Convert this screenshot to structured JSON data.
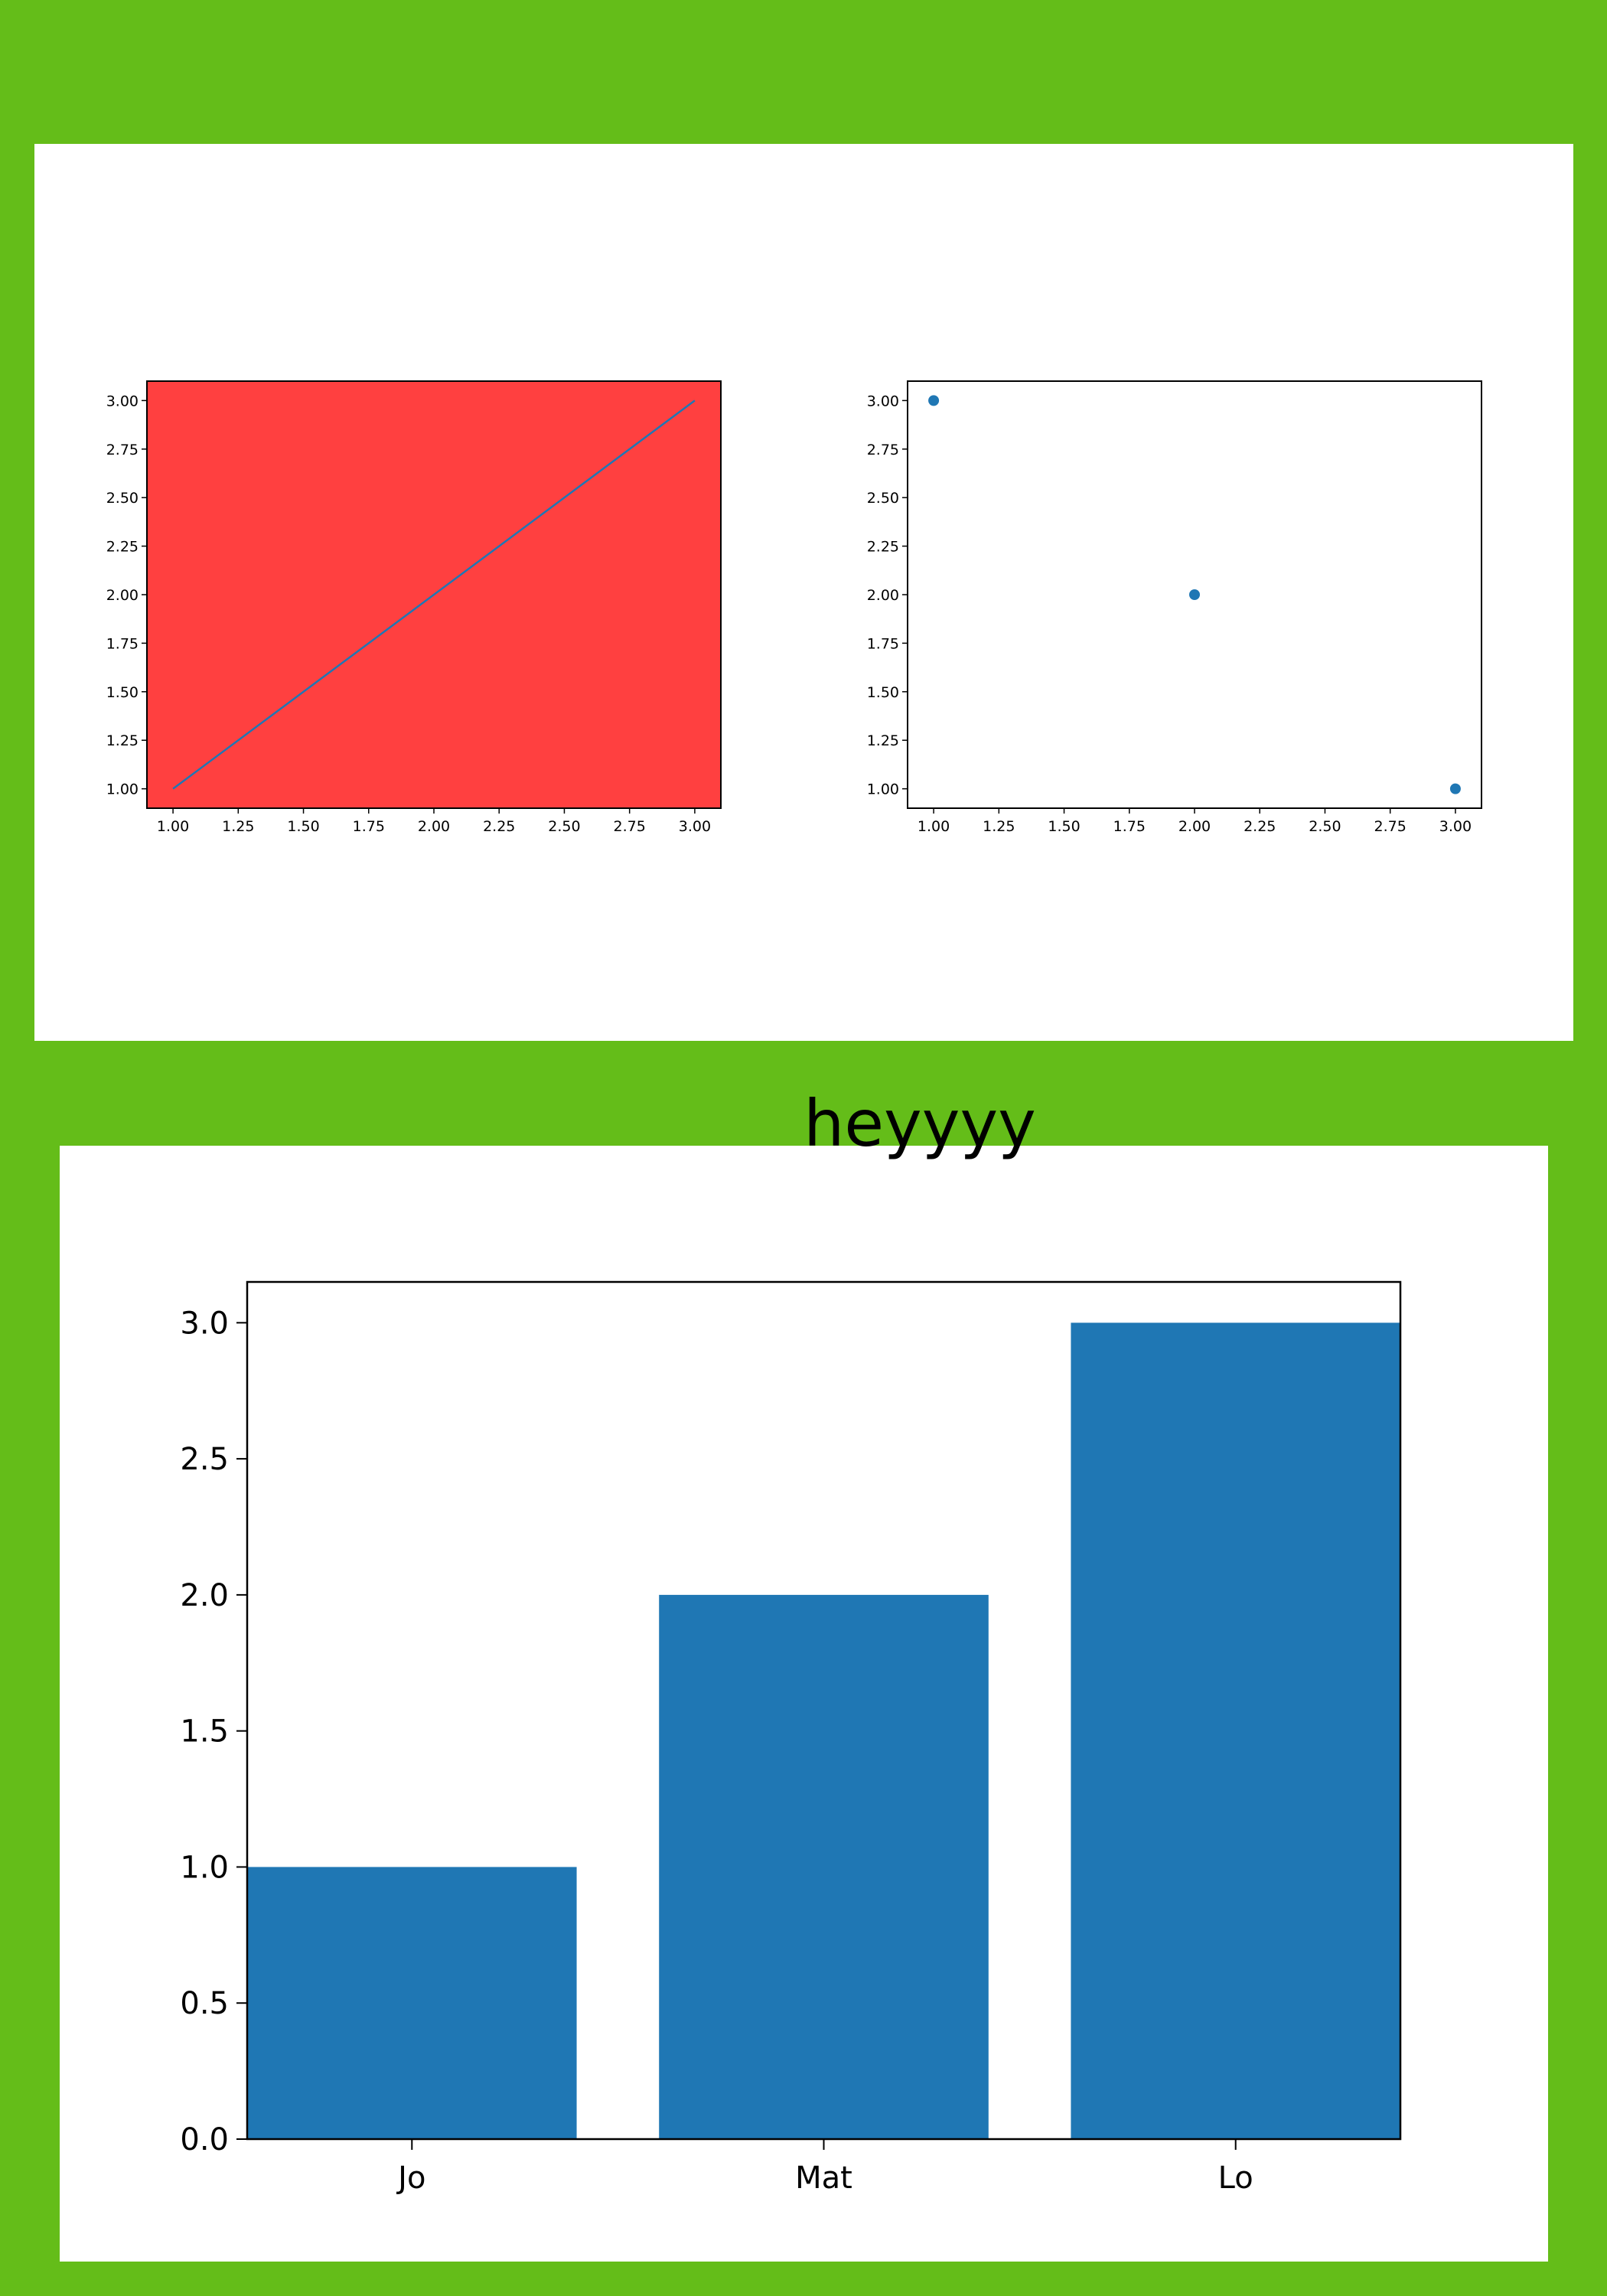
{
  "page": {
    "background_color": "#64bd19",
    "heading": "heyyyy"
  },
  "chart_data": [
    {
      "type": "line",
      "x": [
        1,
        2,
        3
      ],
      "series": [
        {
          "values": [
            1,
            2,
            3
          ],
          "color": "#1f77b4"
        }
      ],
      "xlim": [
        0.9,
        3.1
      ],
      "ylim": [
        0.9,
        3.1
      ],
      "xticks": [
        "1.00",
        "1.25",
        "1.50",
        "1.75",
        "2.00",
        "2.25",
        "2.50",
        "2.75",
        "3.00"
      ],
      "yticks": [
        "1.00",
        "1.25",
        "1.50",
        "1.75",
        "2.00",
        "2.25",
        "2.50",
        "2.75",
        "3.00"
      ],
      "facecolor": "#ff4040",
      "grid": false
    },
    {
      "type": "scatter",
      "x": [
        1,
        2,
        3
      ],
      "series": [
        {
          "values": [
            3,
            2,
            1
          ],
          "color": "#1f77b4"
        }
      ],
      "xlim": [
        0.9,
        3.1
      ],
      "ylim": [
        0.9,
        3.1
      ],
      "xticks": [
        "1.00",
        "1.25",
        "1.50",
        "1.75",
        "2.00",
        "2.25",
        "2.50",
        "2.75",
        "3.00"
      ],
      "yticks": [
        "1.00",
        "1.25",
        "1.50",
        "1.75",
        "2.00",
        "2.25",
        "2.50",
        "2.75",
        "3.00"
      ],
      "facecolor": "#ffffff",
      "grid": false
    },
    {
      "type": "bar",
      "categories": [
        "Jo",
        "Mat",
        "Lo"
      ],
      "values": [
        1,
        2,
        3
      ],
      "color": "#1f77b4",
      "ylim": [
        0,
        3.15
      ],
      "yticks": [
        "0.0",
        "0.5",
        "1.0",
        "1.5",
        "2.0",
        "2.5",
        "3.0"
      ],
      "facecolor": "#ffffff",
      "grid": false
    }
  ]
}
